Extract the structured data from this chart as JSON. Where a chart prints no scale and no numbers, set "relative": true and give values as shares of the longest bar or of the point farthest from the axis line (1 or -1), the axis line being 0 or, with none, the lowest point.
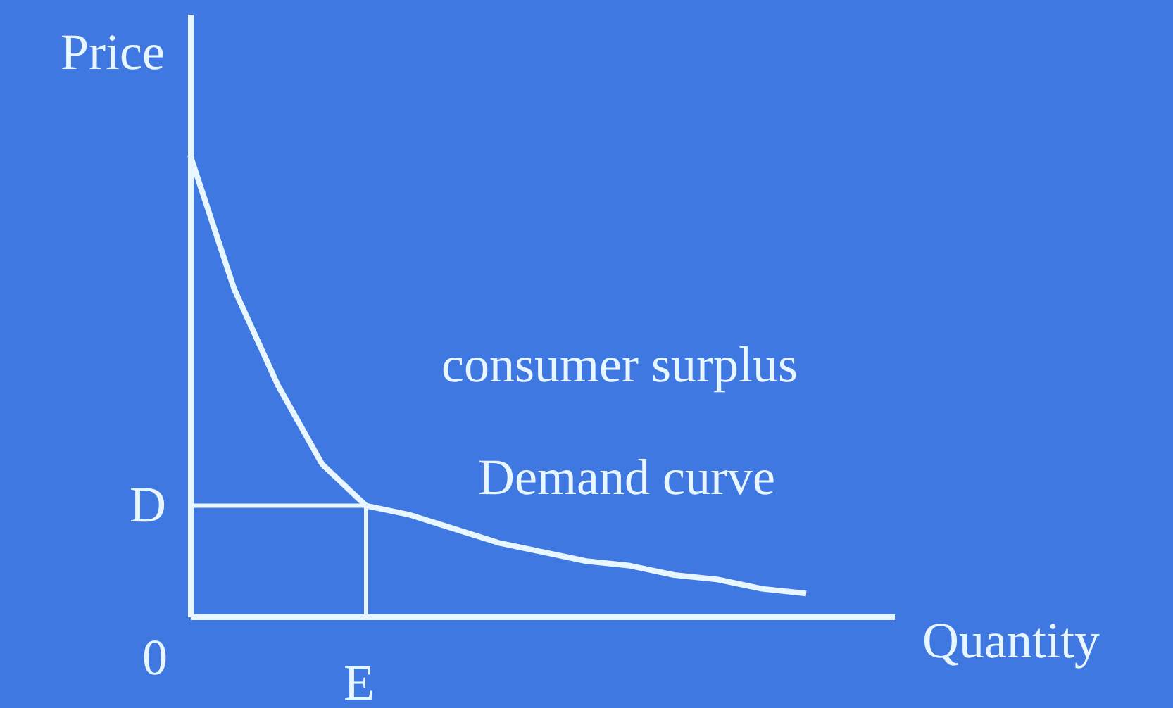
{
  "chart_data": {
    "type": "line",
    "relative": true,
    "xlabel": "Quantity",
    "ylabel": "Price",
    "color": "#e8f6ff",
    "categories": [
      null,
      null,
      null,
      null,
      null,
      null,
      null,
      null,
      null,
      null,
      null,
      null,
      null,
      null,
      null,
      null,
      null
    ],
    "values": [
      1,
      0.71,
      0.5,
      0.33,
      0.24,
      0.22,
      0.19,
      0.16,
      0.14,
      0.12,
      0.11,
      0.09,
      0.08,
      0.06,
      0.05,
      null,
      null
    ],
    "ref_lines": [
      {
        "axis": "y",
        "value": 0.24,
        "label": "D"
      }
    ],
    "annotations": [
      "consumer surplus",
      "Demand curve",
      "0",
      "E"
    ],
    "grid": false
  }
}
